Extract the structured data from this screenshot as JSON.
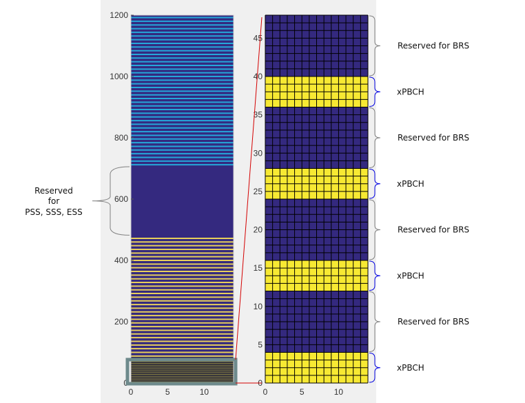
{
  "figure": {
    "colors": {
      "navy": "#34297f",
      "cyan": "#25a7d9",
      "yellow": "#f7e933",
      "yellow_lines": "#e8cf5a",
      "axes_bg": "#f0f0f0",
      "zoom_box": "#6e8a8c",
      "zoom_line": "#d40000",
      "gray_brace": "#808080",
      "blue_brace": "#0000e0"
    },
    "left_plot": {
      "y_ticks": [
        "0",
        "200",
        "400",
        "600",
        "800",
        "1000",
        "1200"
      ],
      "x_ticks": [
        "0",
        "5",
        "10"
      ],
      "ylim": [
        0,
        1200
      ],
      "xlim": [
        0,
        14
      ],
      "regions": [
        {
          "from": 0,
          "to": 84,
          "kind": "zoomed block"
        },
        {
          "from": 84,
          "to": 480,
          "kind": "yellow stripes"
        },
        {
          "from": 480,
          "to": 708,
          "kind": "solid navy"
        },
        {
          "from": 708,
          "to": 1200,
          "kind": "cyan stripes"
        }
      ],
      "annotation": {
        "line1": "Reserved",
        "line2": "for",
        "line3": "PSS, SSS, ESS"
      }
    },
    "right_plot": {
      "y_ticks": [
        "0",
        "5",
        "10",
        "15",
        "20",
        "25",
        "30",
        "35",
        "40",
        "45"
      ],
      "x_ticks": [
        "0",
        "5",
        "10"
      ],
      "ylim": [
        0,
        48
      ],
      "xlim": [
        0,
        14
      ],
      "bands": [
        {
          "from": 0,
          "to": 4,
          "type": "xPBCH"
        },
        {
          "from": 4,
          "to": 12,
          "type": "BRS"
        },
        {
          "from": 12,
          "to": 16,
          "type": "xPBCH"
        },
        {
          "from": 16,
          "to": 24,
          "type": "BRS"
        },
        {
          "from": 24,
          "to": 28,
          "type": "xPBCH"
        },
        {
          "from": 28,
          "to": 36,
          "type": "BRS"
        },
        {
          "from": 36,
          "to": 40,
          "type": "xPBCH"
        },
        {
          "from": 40,
          "to": 48,
          "type": "BRS"
        }
      ],
      "labels": {
        "brs": "Reserved for BRS",
        "xpbch": "xPBCH"
      }
    }
  }
}
